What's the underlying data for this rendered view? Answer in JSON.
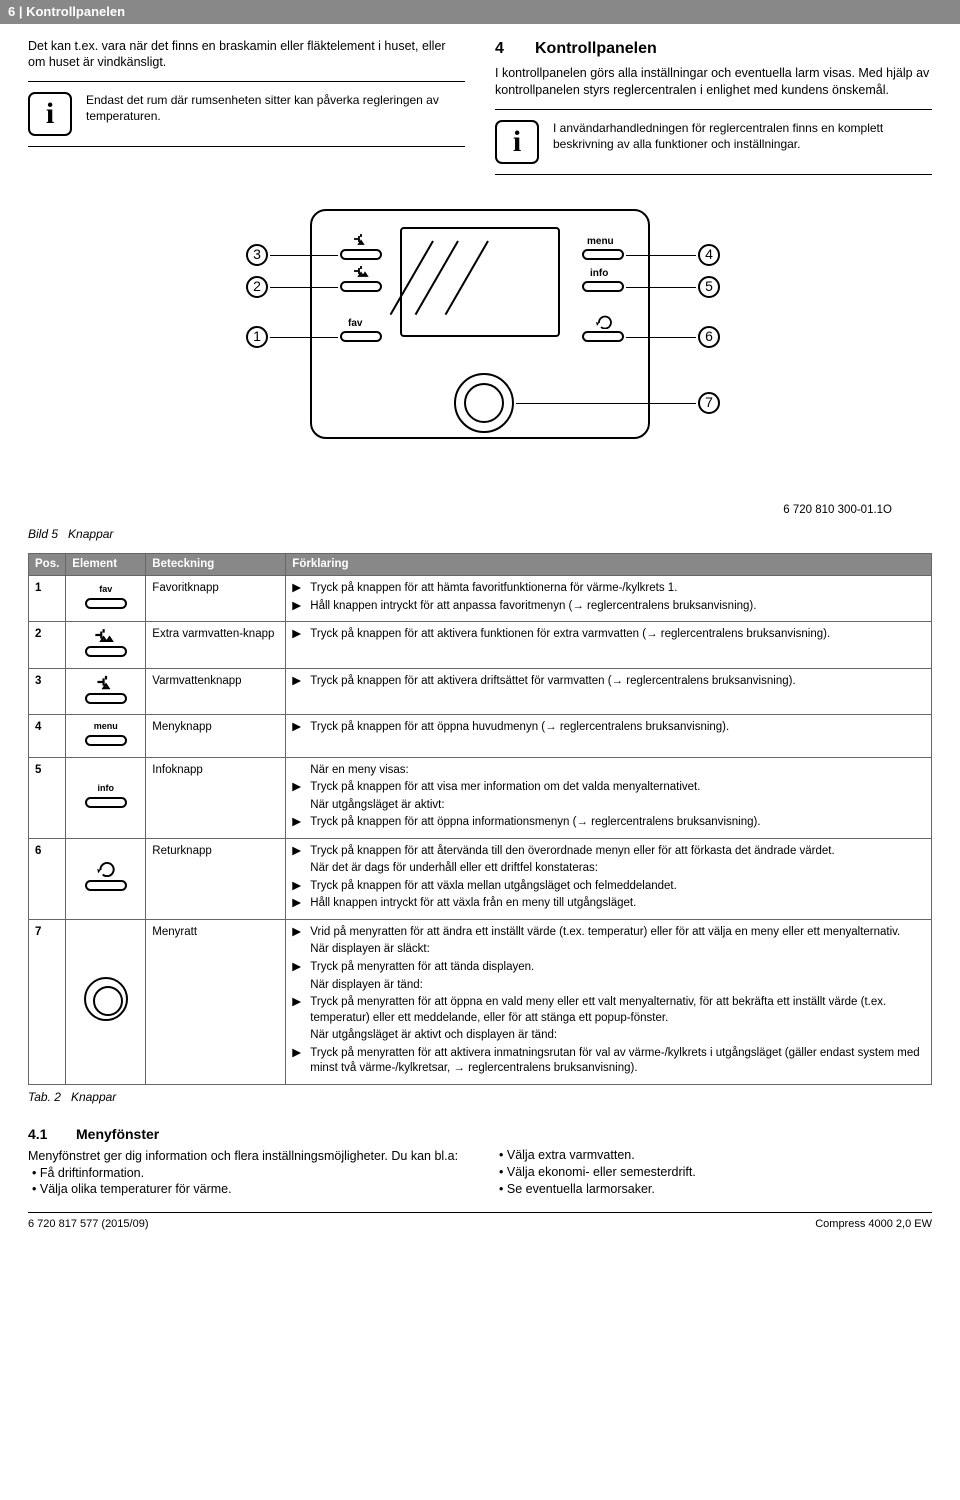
{
  "header": "6 | Kontrollpanelen",
  "left": {
    "intro": "Det kan t.ex. vara när det finns en braskamin eller fläktelement i huset, eller om huset är vindkänsligt.",
    "info": "Endast det rum där rumsenheten sitter kan påverka regleringen av temperaturen."
  },
  "right": {
    "secnum": "4",
    "title": "Kontrollpanelen",
    "para": "I kontrollpanelen görs alla inställningar och eventuella larm visas. Med hjälp av kontrollpanelen styrs reglercentralen i enlighet med kundens önskemål.",
    "info": "I användarhandledningen för reglercentralen finns en komplett beskrivning av alla funktioner och inställningar."
  },
  "diagram": {
    "ref": "6 720 810 300-01.1O",
    "caption_label": "Bild 5",
    "caption_text": "Knappar",
    "labels": {
      "fav": "fav",
      "menu": "menu",
      "info": "info"
    }
  },
  "table": {
    "headers": {
      "pos": "Pos.",
      "elem": "Element",
      "bet": "Beteckning",
      "for": "Förklaring"
    },
    "rows": [
      {
        "pos": "1",
        "elem_label": "fav",
        "bet": "Favoritknapp",
        "lines": [
          {
            "m": "▶",
            "t": "Tryck på knappen för att hämta favoritfunktionerna för värme-/kylkrets 1."
          },
          {
            "m": "▶",
            "t": "Håll knappen intryckt för att anpassa favoritmenyn (→ reglercentralens bruksanvisning)."
          }
        ]
      },
      {
        "pos": "2",
        "elem_tap": "extra",
        "bet": "Extra varmvatten-knapp",
        "lines": [
          {
            "m": "▶",
            "t": "Tryck på knappen för att aktivera funktionen för extra varmvatten (→ reglercentralens bruksanvisning)."
          }
        ]
      },
      {
        "pos": "3",
        "elem_tap": "single",
        "bet": "Varmvattenknapp",
        "lines": [
          {
            "m": "▶",
            "t": "Tryck på knappen för att aktivera driftsättet för varmvatten (→ reglercentralens bruksanvisning)."
          }
        ]
      },
      {
        "pos": "4",
        "elem_label": "menu",
        "bet": "Menyknapp",
        "lines": [
          {
            "m": "▶",
            "t": "Tryck på knappen för att öppna huvudmenyn (→ reglercentralens bruksanvisning)."
          }
        ]
      },
      {
        "pos": "5",
        "elem_label": "info",
        "bet": "Infoknapp",
        "lines": [
          {
            "m": "",
            "t": "När en meny visas:"
          },
          {
            "m": "▶",
            "t": "Tryck på knappen för att visa mer information om det valda menyalternativet."
          },
          {
            "m": "",
            "t": "När utgångsläget är aktivt:"
          },
          {
            "m": "▶",
            "t": "Tryck på knappen för att öppna informationsmenyn (→ reglercentralens bruksanvisning)."
          }
        ]
      },
      {
        "pos": "6",
        "elem_return": true,
        "bet": "Returknapp",
        "lines": [
          {
            "m": "▶",
            "t": "Tryck på knappen för att återvända till den överordnade menyn eller för att förkasta det ändrade värdet."
          },
          {
            "m": "",
            "t": "När det är dags för underhåll eller ett driftfel konstateras:"
          },
          {
            "m": "▶",
            "t": "Tryck på knappen för att växla mellan utgångsläget och felmeddelandet."
          },
          {
            "m": "▶",
            "t": "Håll knappen intryckt för att växla från en meny till utgångsläget."
          }
        ]
      },
      {
        "pos": "7",
        "elem_dial": true,
        "bet": "Menyratt",
        "lines": [
          {
            "m": "▶",
            "t": "Vrid på menyratten för att ändra ett inställt värde (t.ex. temperatur) eller för att välja en meny eller ett menyalternativ."
          },
          {
            "m": "",
            "t": "När displayen är släckt:"
          },
          {
            "m": "▶",
            "t": "Tryck på menyratten för att tända displayen."
          },
          {
            "m": "",
            "t": "När displayen är tänd:"
          },
          {
            "m": "▶",
            "t": "Tryck på menyratten för att öppna en vald meny eller ett valt menyalternativ, för att bekräfta ett inställt värde (t.ex. temperatur) eller ett meddelande, eller för att stänga ett popup-fönster."
          },
          {
            "m": "",
            "t": "När utgångsläget är aktivt och displayen är tänd:"
          },
          {
            "m": "▶",
            "t": "Tryck på menyratten för att aktivera inmatningsrutan för val av värme-/kylkrets i utgångsläget (gäller endast system med minst två värme-/kylkretsar, → reglercentralens bruksanvisning)."
          }
        ]
      }
    ],
    "tab_label": "Tab. 2",
    "tab_text": "Knappar"
  },
  "sec41": {
    "num": "4.1",
    "title": "Menyfönster",
    "para": "Menyfönstret ger dig information och flera inställningsmöjligheter. Du kan bl.a:",
    "left": [
      "Få driftinformation.",
      "Välja olika temperaturer för värme."
    ],
    "right": [
      "Välja extra varmvatten.",
      "Välja ekonomi- eller semesterdrift.",
      "Se eventuella larmorsaker."
    ]
  },
  "footer": {
    "left": "6 720 817 577 (2015/09)",
    "right": "Compress 4000 2,0 EW"
  }
}
